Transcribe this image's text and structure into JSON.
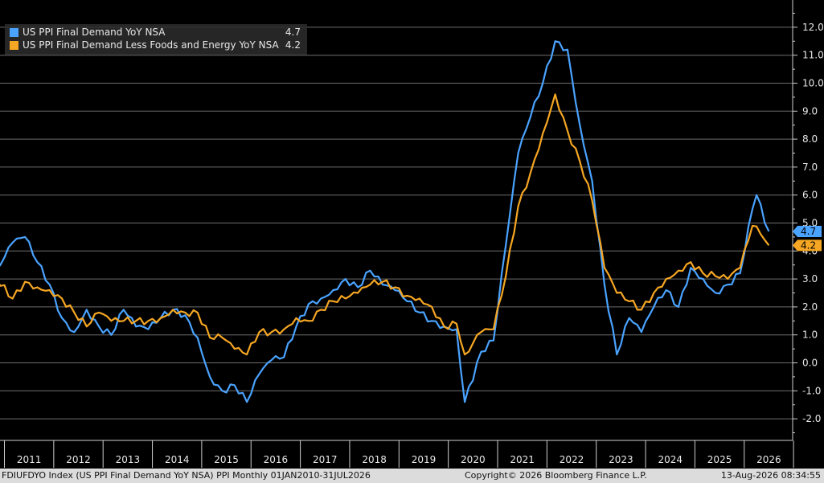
{
  "legend": {
    "items": [
      {
        "label": "US PPI Final Demand YoY NSA",
        "value": "4.7",
        "color": "#4aa3ff"
      },
      {
        "label": "US PPI Final Demand Less Foods and Energy YoY NSA",
        "value": "4.2",
        "color": "#f5a623"
      }
    ]
  },
  "footer": {
    "left": "FDIUFDYO Index (US PPI Final Demand YoY NSA) PPI Monthly 01JAN2010-31JUL2026",
    "center": "Copyright© 2026 Bloomberg Finance L.P.",
    "right": "13-Aug-2026 08:34:55"
  },
  "chart_data": {
    "type": "line",
    "title": "",
    "xlabel": "",
    "ylabel": "",
    "x_start": "2010-09",
    "x_end": "2026-07",
    "frequency": "monthly",
    "x_ticks": [
      "2011",
      "2012",
      "2013",
      "2014",
      "2015",
      "2016",
      "2017",
      "2018",
      "2019",
      "2020",
      "2021",
      "2022",
      "2023",
      "2024",
      "2025",
      "2026"
    ],
    "y_ticks": [
      "12.0",
      "11.0",
      "10.0",
      "9.0",
      "8.0",
      "7.0",
      "6.0",
      "5.0",
      "4.0",
      "3.0",
      "2.0",
      "1.0",
      "0.0",
      "-1.0",
      "-2.0"
    ],
    "ylim": [
      -2.8,
      12.6
    ],
    "grid": true,
    "axis_side": "right",
    "legend_position": "top-left",
    "series": [
      {
        "name": "US PPI Final Demand YoY NSA",
        "color": "#4aa3ff",
        "last_value": "4.7",
        "knots": [
          [
            "2010-09",
            2.6
          ],
          [
            "2010-12",
            3.5
          ],
          [
            "2011-03",
            4.3
          ],
          [
            "2011-06",
            4.5
          ],
          [
            "2011-09",
            3.6
          ],
          [
            "2011-12",
            2.8
          ],
          [
            "2012-03",
            1.6
          ],
          [
            "2012-06",
            1.1
          ],
          [
            "2012-09",
            1.9
          ],
          [
            "2012-12",
            1.3
          ],
          [
            "2013-03",
            1.0
          ],
          [
            "2013-06",
            1.9
          ],
          [
            "2013-09",
            1.3
          ],
          [
            "2013-12",
            1.2
          ],
          [
            "2014-03",
            1.6
          ],
          [
            "2014-06",
            1.9
          ],
          [
            "2014-09",
            1.7
          ],
          [
            "2014-12",
            0.9
          ],
          [
            "2015-03",
            -0.5
          ],
          [
            "2015-06",
            -1.0
          ],
          [
            "2015-09",
            -0.8
          ],
          [
            "2015-12",
            -1.4
          ],
          [
            "2016-03",
            -0.4
          ],
          [
            "2016-06",
            0.1
          ],
          [
            "2016-09",
            0.2
          ],
          [
            "2016-12",
            1.3
          ],
          [
            "2017-03",
            2.1
          ],
          [
            "2017-06",
            2.3
          ],
          [
            "2017-09",
            2.6
          ],
          [
            "2017-12",
            3.0
          ],
          [
            "2018-03",
            2.7
          ],
          [
            "2018-06",
            3.3
          ],
          [
            "2018-09",
            2.8
          ],
          [
            "2018-12",
            2.6
          ],
          [
            "2019-03",
            2.2
          ],
          [
            "2019-06",
            1.8
          ],
          [
            "2019-09",
            1.5
          ],
          [
            "2019-12",
            1.3
          ],
          [
            "2020-03",
            1.2
          ],
          [
            "2020-05",
            -1.4
          ],
          [
            "2020-09",
            0.4
          ],
          [
            "2020-12",
            0.8
          ],
          [
            "2021-03",
            4.2
          ],
          [
            "2021-06",
            7.5
          ],
          [
            "2021-09",
            8.8
          ],
          [
            "2021-12",
            10.0
          ],
          [
            "2022-03",
            11.5
          ],
          [
            "2022-06",
            11.2
          ],
          [
            "2022-09",
            8.5
          ],
          [
            "2022-12",
            6.5
          ],
          [
            "2023-03",
            2.8
          ],
          [
            "2023-06",
            0.3
          ],
          [
            "2023-09",
            1.6
          ],
          [
            "2023-12",
            1.1
          ],
          [
            "2024-03",
            2.0
          ],
          [
            "2024-06",
            2.6
          ],
          [
            "2024-09",
            2.0
          ],
          [
            "2024-12",
            3.4
          ],
          [
            "2025-03",
            3.0
          ],
          [
            "2025-06",
            2.5
          ],
          [
            "2025-09",
            2.8
          ],
          [
            "2025-12",
            3.2
          ],
          [
            "2026-03",
            5.5
          ],
          [
            "2026-04",
            6.0
          ],
          [
            "2026-07",
            4.7
          ]
        ]
      },
      {
        "name": "US PPI Final Demand Less Foods and Energy YoY NSA",
        "color": "#f5a623",
        "last_value": "4.2",
        "knots": [
          [
            "2010-09",
            2.6
          ],
          [
            "2010-11",
            3.0
          ],
          [
            "2011-03",
            2.3
          ],
          [
            "2011-06",
            2.9
          ],
          [
            "2011-09",
            2.7
          ],
          [
            "2011-12",
            2.6
          ],
          [
            "2012-03",
            2.3
          ],
          [
            "2012-06",
            1.8
          ],
          [
            "2012-09",
            1.3
          ],
          [
            "2012-12",
            1.8
          ],
          [
            "2013-03",
            1.5
          ],
          [
            "2013-06",
            1.5
          ],
          [
            "2013-09",
            1.5
          ],
          [
            "2013-12",
            1.5
          ],
          [
            "2014-03",
            1.6
          ],
          [
            "2014-06",
            1.9
          ],
          [
            "2014-09",
            1.8
          ],
          [
            "2014-12",
            1.8
          ],
          [
            "2015-03",
            0.9
          ],
          [
            "2015-06",
            0.9
          ],
          [
            "2015-09",
            0.5
          ],
          [
            "2015-12",
            0.3
          ],
          [
            "2016-03",
            1.1
          ],
          [
            "2016-06",
            1.1
          ],
          [
            "2016-09",
            1.2
          ],
          [
            "2016-12",
            1.6
          ],
          [
            "2017-03",
            1.5
          ],
          [
            "2017-06",
            1.9
          ],
          [
            "2017-09",
            2.2
          ],
          [
            "2017-12",
            2.3
          ],
          [
            "2018-03",
            2.5
          ],
          [
            "2018-06",
            2.8
          ],
          [
            "2018-09",
            2.9
          ],
          [
            "2018-12",
            2.7
          ],
          [
            "2019-03",
            2.4
          ],
          [
            "2019-06",
            2.3
          ],
          [
            "2019-09",
            2.0
          ],
          [
            "2019-12",
            1.3
          ],
          [
            "2020-03",
            1.4
          ],
          [
            "2020-05",
            0.3
          ],
          [
            "2020-09",
            1.1
          ],
          [
            "2020-12",
            1.2
          ],
          [
            "2021-03",
            3.1
          ],
          [
            "2021-06",
            5.6
          ],
          [
            "2021-09",
            6.8
          ],
          [
            "2021-12",
            8.2
          ],
          [
            "2022-03",
            9.6
          ],
          [
            "2022-06",
            8.3
          ],
          [
            "2022-09",
            7.2
          ],
          [
            "2022-12",
            5.8
          ],
          [
            "2023-03",
            3.4
          ],
          [
            "2023-06",
            2.5
          ],
          [
            "2023-09",
            2.2
          ],
          [
            "2023-12",
            1.9
          ],
          [
            "2024-03",
            2.5
          ],
          [
            "2024-06",
            3.0
          ],
          [
            "2024-09",
            3.3
          ],
          [
            "2024-12",
            3.6
          ],
          [
            "2025-03",
            3.2
          ],
          [
            "2025-06",
            3.1
          ],
          [
            "2025-09",
            3.0
          ],
          [
            "2025-12",
            3.4
          ],
          [
            "2026-03",
            4.9
          ],
          [
            "2026-05",
            4.6
          ],
          [
            "2026-07",
            4.2
          ]
        ]
      }
    ]
  }
}
